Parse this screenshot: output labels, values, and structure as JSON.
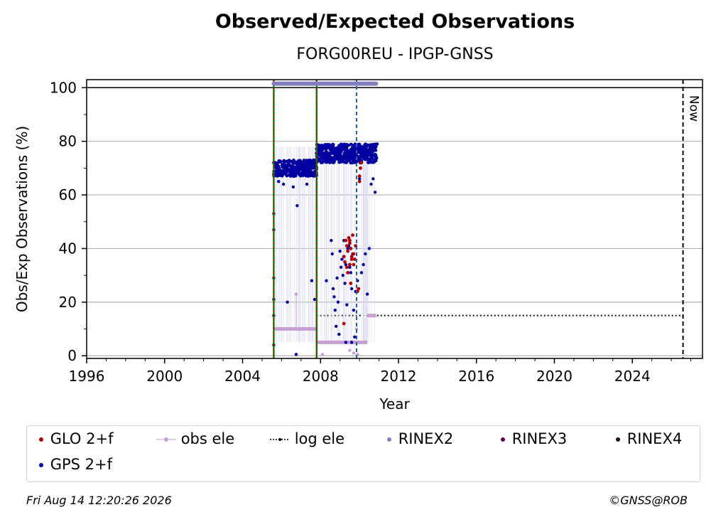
{
  "chart_data": {
    "type": "scatter",
    "title": "Observed/Expected Observations",
    "subtitle": "FORG00REU - IPGP-GNSS",
    "xlabel": "Year",
    "ylabel": "Obs/Exp Observations (%)",
    "xlim": [
      1996,
      2027.6
    ],
    "ylim": [
      -1,
      103
    ],
    "x_ticks": [
      1996,
      2000,
      2004,
      2008,
      2012,
      2016,
      2020,
      2024
    ],
    "y_ticks": [
      0,
      20,
      40,
      60,
      80,
      100
    ],
    "grid": "horizontal",
    "now_label": "Now",
    "now_x": 2026.6,
    "vlines_green_red": [
      2005.6,
      2007.8
    ],
    "vline_blue": 2009.85,
    "colors": {
      "glo": "#b00000",
      "gps": "#0000a0",
      "obs_ele": "#c79fd6",
      "log_ele": "#000000",
      "rinex2": "#8080c0",
      "rinex3": "#6a0050",
      "rinex4": "#200018",
      "green": "#008000",
      "red": "#cc0000",
      "blue_dash": "#1f5fb0",
      "grid": "#b0b0b0"
    },
    "rinex2_bar": {
      "x": [
        2005.6,
        2010.85
      ],
      "y": 101.5
    },
    "log_ele": [
      {
        "x": [
          2005.6,
          2007.8
        ],
        "y": 10
      },
      {
        "x": [
          2007.8,
          2026.6
        ],
        "y": 15
      }
    ],
    "obs_ele_segments": [
      {
        "x": [
          2005.6,
          2007.8
        ],
        "y": 10
      },
      {
        "x": [
          2007.8,
          2010.4
        ],
        "y": 5
      },
      {
        "x": [
          2010.4,
          2010.85
        ],
        "y": 15
      }
    ],
    "obs_ele_points": [
      [
        2006.75,
        23
      ],
      [
        2008.1,
        0.5
      ],
      [
        2009.5,
        2
      ],
      [
        2009.7,
        1
      ],
      [
        2009.85,
        10
      ],
      [
        2009.9,
        0.5
      ]
    ],
    "series": [
      {
        "name": "GLO 2+f",
        "key": "glo"
      },
      {
        "name": "GPS 2+f",
        "key": "gps"
      }
    ],
    "gps_clusters": [
      {
        "x": [
          2005.6,
          2007.8
        ],
        "y": [
          67,
          73
        ]
      },
      {
        "x": [
          2007.8,
          2010.9
        ],
        "y": [
          72,
          79
        ]
      }
    ],
    "gps_points": [
      [
        2005.6,
        53
      ],
      [
        2005.6,
        47
      ],
      [
        2005.6,
        29
      ],
      [
        2005.6,
        21
      ],
      [
        2005.6,
        15
      ],
      [
        2005.6,
        4
      ],
      [
        2005.85,
        65
      ],
      [
        2006.1,
        64
      ],
      [
        2006.3,
        20
      ],
      [
        2006.6,
        63
      ],
      [
        2006.8,
        56
      ],
      [
        2006.75,
        0.5
      ],
      [
        2007.3,
        64
      ],
      [
        2007.55,
        28
      ],
      [
        2007.7,
        21
      ],
      [
        2008.3,
        28
      ],
      [
        2008.55,
        43
      ],
      [
        2008.6,
        38
      ],
      [
        2008.65,
        25
      ],
      [
        2008.7,
        22
      ],
      [
        2008.75,
        17
      ],
      [
        2008.8,
        11
      ],
      [
        2008.85,
        29
      ],
      [
        2008.9,
        20
      ],
      [
        2008.95,
        8
      ],
      [
        2009.0,
        39
      ],
      [
        2009.05,
        33
      ],
      [
        2009.1,
        36
      ],
      [
        2009.15,
        30
      ],
      [
        2009.2,
        43
      ],
      [
        2009.25,
        27
      ],
      [
        2009.3,
        34
      ],
      [
        2009.35,
        19
      ],
      [
        2009.4,
        40
      ],
      [
        2009.45,
        41
      ],
      [
        2009.5,
        33
      ],
      [
        2009.55,
        31
      ],
      [
        2009.6,
        25
      ],
      [
        2009.65,
        38
      ],
      [
        2009.7,
        17
      ],
      [
        2009.75,
        7
      ],
      [
        2009.8,
        24
      ],
      [
        2009.9,
        28
      ],
      [
        2010.0,
        66
      ],
      [
        2010.1,
        31
      ],
      [
        2010.2,
        34
      ],
      [
        2010.3,
        38
      ],
      [
        2010.4,
        23
      ],
      [
        2010.5,
        40
      ],
      [
        2010.6,
        64
      ],
      [
        2010.7,
        66
      ],
      [
        2010.8,
        61
      ],
      [
        2009.3,
        5
      ],
      [
        2009.6,
        5
      ]
    ],
    "glo_points": [
      [
        2009.3,
        43
      ],
      [
        2009.35,
        41
      ],
      [
        2009.4,
        39
      ],
      [
        2009.45,
        44
      ],
      [
        2009.5,
        42
      ],
      [
        2009.55,
        40
      ],
      [
        2009.6,
        37
      ],
      [
        2009.65,
        45
      ],
      [
        2009.7,
        38
      ],
      [
        2009.75,
        36
      ],
      [
        2009.8,
        41
      ],
      [
        2009.25,
        35
      ],
      [
        2009.2,
        37
      ],
      [
        2009.35,
        33
      ],
      [
        2009.5,
        34
      ],
      [
        2009.6,
        36
      ],
      [
        2009.7,
        34
      ],
      [
        2009.4,
        31
      ],
      [
        2009.55,
        27
      ],
      [
        2009.9,
        24
      ],
      [
        2009.95,
        25
      ],
      [
        2010.0,
        67
      ],
      [
        2010.05,
        70
      ],
      [
        2010.1,
        72
      ],
      [
        2010.0,
        65
      ],
      [
        2009.2,
        12
      ],
      [
        2009.5,
        43
      ]
    ],
    "legend": {
      "glo": "GLO 2+f",
      "obs_ele": "obs ele",
      "log_ele": "log ele",
      "rinex2": "RINEX2",
      "rinex3": "RINEX3",
      "rinex4": "RINEX4",
      "gps": "GPS 2+f"
    }
  },
  "footer": {
    "timestamp": "Fri Aug 14 12:20:26 2026",
    "copyright": "©GNSS@ROB"
  }
}
